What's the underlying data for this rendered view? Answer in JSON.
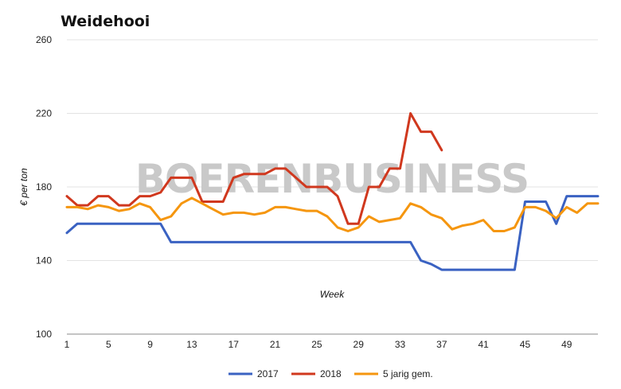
{
  "chart_data": {
    "type": "line",
    "title": "Weidehooi",
    "xlabel": "Week",
    "ylabel": "€ per ton",
    "ylim": [
      100,
      260
    ],
    "xlim": [
      1,
      52
    ],
    "yticks": [
      100,
      140,
      180,
      220,
      260
    ],
    "xticks": [
      1,
      5,
      9,
      13,
      17,
      21,
      25,
      29,
      33,
      37,
      41,
      45,
      49
    ],
    "grid": "horizontal",
    "legend": "bottom",
    "watermark": "BOERENBUSINESS",
    "series": [
      {
        "name": "2017",
        "color": "#3a62c2",
        "x": [
          1,
          2,
          3,
          4,
          5,
          6,
          7,
          8,
          9,
          10,
          11,
          12,
          13,
          14,
          15,
          16,
          17,
          18,
          19,
          20,
          21,
          22,
          23,
          24,
          25,
          26,
          27,
          28,
          29,
          30,
          31,
          32,
          33,
          34,
          35,
          36,
          37,
          38,
          39,
          40,
          41,
          42,
          43,
          44,
          45,
          46,
          47,
          48,
          49,
          50,
          51,
          52
        ],
        "values": [
          155,
          160,
          160,
          160,
          160,
          160,
          160,
          160,
          160,
          160,
          150,
          150,
          150,
          150,
          150,
          150,
          150,
          150,
          150,
          150,
          150,
          150,
          150,
          150,
          150,
          150,
          150,
          150,
          150,
          150,
          150,
          150,
          150,
          150,
          140,
          138,
          135,
          135,
          135,
          135,
          135,
          135,
          135,
          135,
          172,
          172,
          172,
          160,
          175,
          175,
          175,
          175
        ]
      },
      {
        "name": "2018",
        "color": "#d0381e",
        "x": [
          1,
          2,
          3,
          4,
          5,
          6,
          7,
          8,
          9,
          10,
          11,
          12,
          13,
          14,
          15,
          16,
          17,
          18,
          19,
          20,
          21,
          22,
          23,
          24,
          25,
          26,
          27,
          28,
          29,
          30,
          31,
          32,
          33,
          34,
          35,
          36,
          37
        ],
        "values": [
          175,
          170,
          170,
          175,
          175,
          170,
          170,
          175,
          175,
          177,
          185,
          185,
          185,
          172,
          172,
          172,
          185,
          187,
          187,
          187,
          190,
          190,
          185,
          180,
          180,
          180,
          175,
          160,
          160,
          180,
          180,
          190,
          190,
          220,
          210,
          210,
          200
        ]
      },
      {
        "name": "5 jarig gem.",
        "color": "#f5960f",
        "x": [
          1,
          2,
          3,
          4,
          5,
          6,
          7,
          8,
          9,
          10,
          11,
          12,
          13,
          14,
          15,
          16,
          17,
          18,
          19,
          20,
          21,
          22,
          23,
          24,
          25,
          26,
          27,
          28,
          29,
          30,
          31,
          32,
          33,
          34,
          35,
          36,
          37,
          38,
          39,
          40,
          41,
          42,
          43,
          44,
          45,
          46,
          47,
          48,
          49,
          50,
          51,
          52
        ],
        "values": [
          169,
          169,
          168,
          170,
          169,
          167,
          168,
          171,
          169,
          162,
          164,
          171,
          174,
          171,
          168,
          165,
          166,
          166,
          165,
          166,
          169,
          169,
          168,
          167,
          167,
          164,
          158,
          156,
          158,
          164,
          161,
          162,
          163,
          171,
          169,
          165,
          163,
          157,
          159,
          160,
          162,
          156,
          156,
          158,
          169,
          169,
          167,
          163,
          169,
          166,
          171,
          171
        ]
      }
    ]
  }
}
